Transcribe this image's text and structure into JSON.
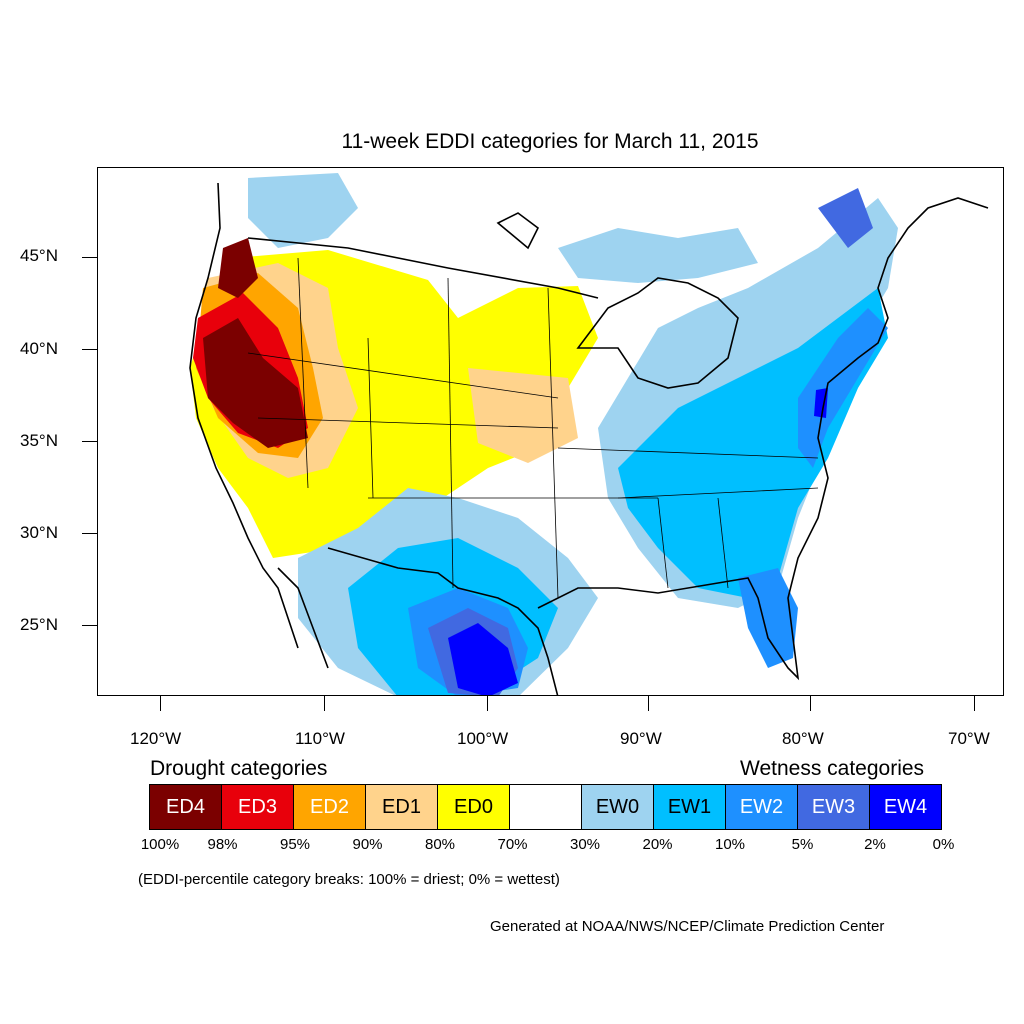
{
  "title": "11-week EDDI categories for March 11, 2015",
  "map": {
    "lat_labels": [
      "45°N",
      "40°N",
      "35°N",
      "30°N",
      "25°N"
    ],
    "lon_labels": [
      "120°W",
      "110°W",
      "100°W",
      "90°W",
      "80°W",
      "70°W"
    ]
  },
  "legend": {
    "drought_heading": "Drought categories",
    "wetness_heading": "Wetness categories",
    "categories": [
      {
        "label": "ED4",
        "color": "#7b0000",
        "text_color": "#ffffff"
      },
      {
        "label": "ED3",
        "color": "#e8000b",
        "text_color": "#ffffff"
      },
      {
        "label": "ED2",
        "color": "#ffa500",
        "text_color": "#ffffff"
      },
      {
        "label": "ED1",
        "color": "#ffd38c",
        "text_color": "#000000"
      },
      {
        "label": "ED0",
        "color": "#ffff00",
        "text_color": "#000000"
      },
      {
        "label": "",
        "color": "#ffffff",
        "text_color": "#000000"
      },
      {
        "label": "EW0",
        "color": "#9ed3f0",
        "text_color": "#000000"
      },
      {
        "label": "EW1",
        "color": "#00bfff",
        "text_color": "#000000"
      },
      {
        "label": "EW2",
        "color": "#1e90ff",
        "text_color": "#ffffff"
      },
      {
        "label": "EW3",
        "color": "#4169e1",
        "text_color": "#ffffff"
      },
      {
        "label": "EW4",
        "color": "#0000ff",
        "text_color": "#ffffff"
      }
    ],
    "breaks": [
      "100%",
      "98%",
      "95%",
      "90%",
      "80%",
      "70%",
      "30%",
      "20%",
      "10%",
      "5%",
      "2%",
      "0%"
    ]
  },
  "note": "(EDDI-percentile category breaks: 100% = driest; 0% = wettest)",
  "credit": "Generated at NOAA/NWS/NCEP/Climate Prediction Center"
}
